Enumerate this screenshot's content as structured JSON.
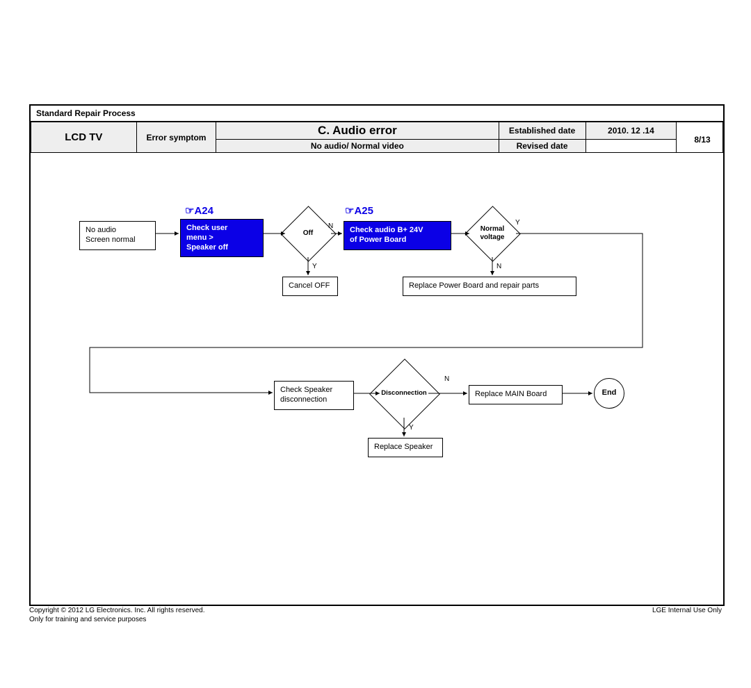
{
  "header": {
    "process_title": "Standard Repair Process",
    "product": "LCD  TV",
    "symptom_label": "Error symptom",
    "title": "C. Audio error",
    "subtitle": "No audio/ Normal video",
    "est_label": "Established date",
    "est_value": "2010. 12 .14",
    "rev_label": "Revised date",
    "rev_value": "",
    "page": "8/13"
  },
  "colors": {
    "process_fill": "#0b00e6",
    "process_text": "#ffffff",
    "header_fill": "#eeeeee",
    "link_color": "#0b00e6",
    "border": "#000000"
  },
  "flow": {
    "refs": {
      "a24": "☞A24",
      "a25": "☞A25"
    },
    "nodes": {
      "start": "No audio\nScreen normal",
      "check_menu": "Check user\nmenu  >\nSpeaker off",
      "off": "Off",
      "cancel": "Cancel OFF",
      "check_b24": "Check audio B+ 24V\nof Power Board",
      "normalv": "Normal\nvoltage",
      "replpb": "Replace Power Board and repair parts",
      "chkspk": "Check Speaker\ndisconnection",
      "discon": "Disconnection",
      "replspk": "Replace Speaker",
      "replmain": "Replace MAIN Board",
      "end": "End"
    },
    "edge_labels": {
      "Y": "Y",
      "N": "N"
    }
  },
  "footer": {
    "copyright": "Copyright © 2012 LG Electronics. Inc. All rights reserved.",
    "note": "Only for training and service purposes",
    "right": "LGE Internal Use Only"
  }
}
